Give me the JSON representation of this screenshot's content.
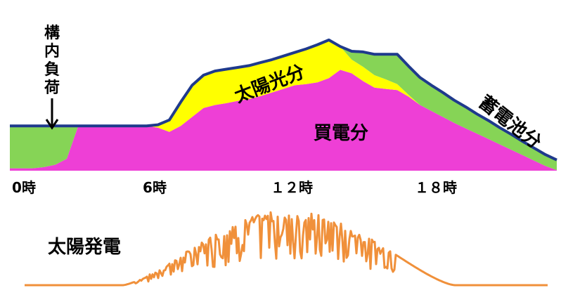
{
  "chart_data": [
    {
      "type": "area",
      "x_ticks": [
        "0時",
        "6時",
        "１２時",
        "１８時"
      ],
      "x_hours": [
        0,
        0.5,
        1,
        1.5,
        2,
        2.5,
        3,
        3.5,
        4,
        4.5,
        5,
        5.5,
        6,
        6.5,
        7,
        7.5,
        8,
        8.5,
        9,
        9.5,
        10,
        10.5,
        11,
        11.5,
        12,
        12.5,
        13,
        13.5,
        14,
        14.5,
        15,
        15.5,
        16,
        16.5,
        17,
        17.5,
        18,
        18.5,
        19,
        19.5,
        20,
        20.5,
        21,
        21.5,
        22,
        22.5,
        23,
        23.5,
        24
      ],
      "series": [
        {
          "name": "買電分",
          "color": "#ee3fd6",
          "values": [
            0.4,
            0.4,
            0.4,
            0.6,
            1,
            2,
            7.5,
            7.5,
            7.5,
            7.5,
            7.5,
            7.5,
            7.5,
            7.2,
            6.5,
            7.5,
            9,
            10.5,
            11,
            11.3,
            11.7,
            12,
            12.5,
            13.1,
            13.7,
            14.3,
            14.5,
            14.8,
            15.5,
            16.9,
            16.3,
            15,
            13.9,
            13.7,
            13.5,
            12.4,
            11,
            10,
            9,
            8,
            7.1,
            6.2,
            5.3,
            4.4,
            3.5,
            2.6,
            1.7,
            0.8,
            0.1
          ]
        },
        {
          "name": "太陽光分",
          "color": "#ffff00",
          "values": [
            0,
            0,
            0,
            0,
            0,
            0,
            0,
            0,
            0,
            0,
            0,
            0,
            0,
            0.5,
            2,
            4,
            5.3,
            5.5,
            5.7,
            5.7,
            5.6,
            5.6,
            5.6,
            5.5,
            5.5,
            5.5,
            5.9,
            6.3,
            6.4,
            3.9,
            2.3,
            2.4,
            2.1,
            1.6,
            1,
            0.3,
            0,
            0,
            0,
            0,
            0,
            0,
            0,
            0,
            0,
            0,
            0,
            0,
            0
          ]
        },
        {
          "name": "蓄電池分",
          "color": "#86d456",
          "values": [
            7.1,
            7.1,
            7.1,
            6.9,
            6.5,
            5.5,
            0,
            0,
            0,
            0,
            0,
            0,
            0,
            0,
            0,
            0,
            0,
            0,
            0,
            0,
            0,
            0,
            0,
            0,
            0,
            0,
            0,
            0,
            0,
            0,
            1.4,
            2.5,
            3.5,
            4.2,
            5,
            4.8,
            4.6,
            4.3,
            4.1,
            3.8,
            3.6,
            3.3,
            3.1,
            2.8,
            2.6,
            2.3,
            2.1,
            1.9,
            1.7
          ]
        }
      ],
      "demand_line": {
        "name": "構内負荷",
        "color": "#1f3a8c"
      },
      "arrow_label": "構内負荷",
      "inline_labels": [
        "太陽光分",
        "買電分",
        "蓄電池分"
      ],
      "grid": false,
      "axes_visible": false
    },
    {
      "type": "line",
      "title": "太陽発電",
      "color": "#f0903a",
      "x_hours_range": [
        0,
        24
      ],
      "series_note": "",
      "grid": false,
      "axes_visible": false
    }
  ]
}
